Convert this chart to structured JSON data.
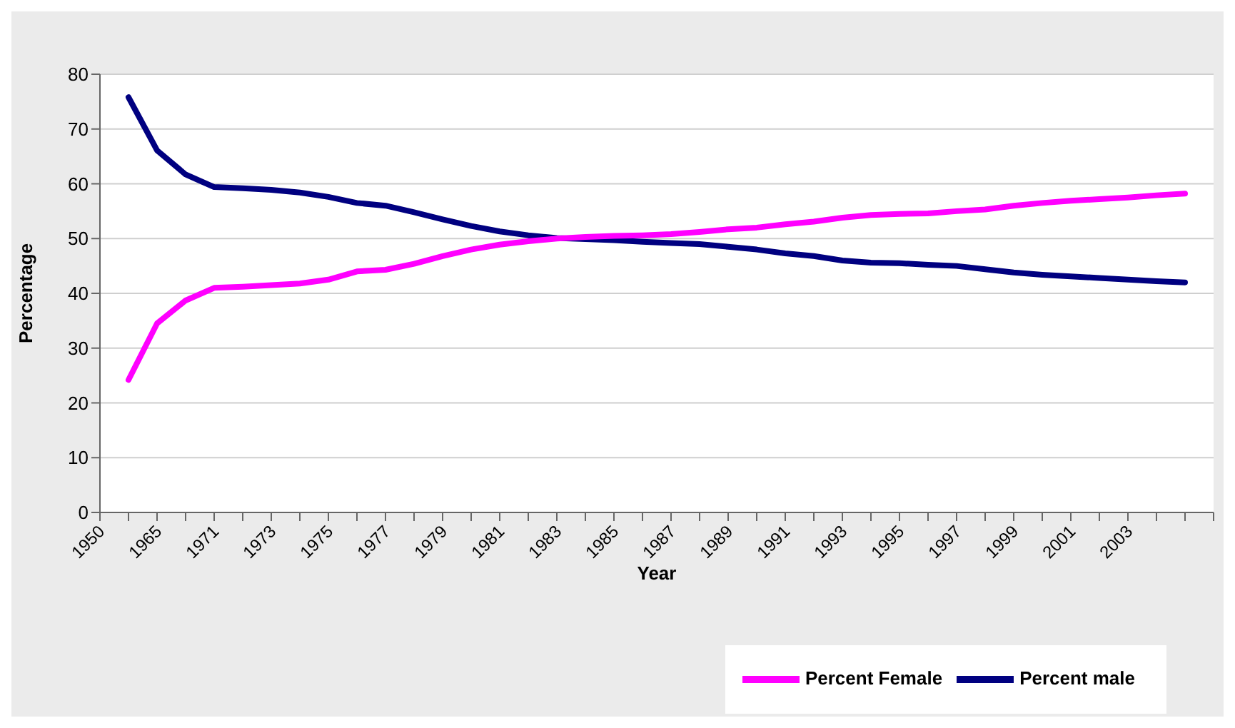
{
  "chart_data": {
    "type": "line",
    "xlabel": "Year",
    "ylabel": "Percentage",
    "categories": [
      "1950",
      null,
      "1965",
      null,
      "1971",
      null,
      "1973",
      null,
      "1975",
      null,
      "1977",
      null,
      "1979",
      null,
      "1981",
      null,
      "1983",
      null,
      "1985",
      null,
      "1987",
      null,
      "1989",
      null,
      "1991",
      null,
      "1993",
      null,
      "1995",
      null,
      "1997",
      null,
      "1999",
      null,
      "2001",
      null,
      "2003",
      null,
      null,
      null
    ],
    "series": [
      {
        "name": "Percent male",
        "color": "#000080",
        "values": [
          null,
          75.8,
          66.1,
          61.7,
          59.4,
          59.2,
          58.9,
          58.4,
          57.6,
          56.5,
          56.0,
          54.8,
          53.5,
          52.3,
          51.3,
          50.6,
          50.1,
          49.9,
          49.7,
          49.4,
          49.2,
          49.0,
          48.5,
          48.0,
          47.3,
          46.8,
          46.0,
          45.6,
          45.5,
          45.2,
          45.0,
          44.4,
          43.8,
          43.4,
          43.1,
          42.8,
          42.5,
          42.2,
          42.0,
          null
        ]
      },
      {
        "name": "Percent  Female",
        "color": "#ff00ff",
        "values": [
          null,
          24.2,
          34.5,
          38.7,
          41.0,
          41.2,
          41.5,
          41.8,
          42.5,
          44.0,
          44.3,
          45.4,
          46.8,
          48.0,
          48.9,
          49.5,
          50.0,
          50.3,
          50.5,
          50.6,
          50.8,
          51.2,
          51.7,
          52.0,
          52.6,
          53.1,
          53.8,
          54.3,
          54.5,
          54.6,
          55.0,
          55.3,
          56.0,
          56.5,
          56.9,
          57.2,
          57.5,
          57.9,
          58.2,
          null
        ]
      }
    ],
    "ylim": [
      0,
      80
    ],
    "yticks": [
      0,
      10,
      20,
      30,
      40,
      50,
      60,
      70,
      80
    ],
    "grid": "y",
    "legend": "bottom right",
    "marker": "none",
    "line_style": "solid"
  }
}
